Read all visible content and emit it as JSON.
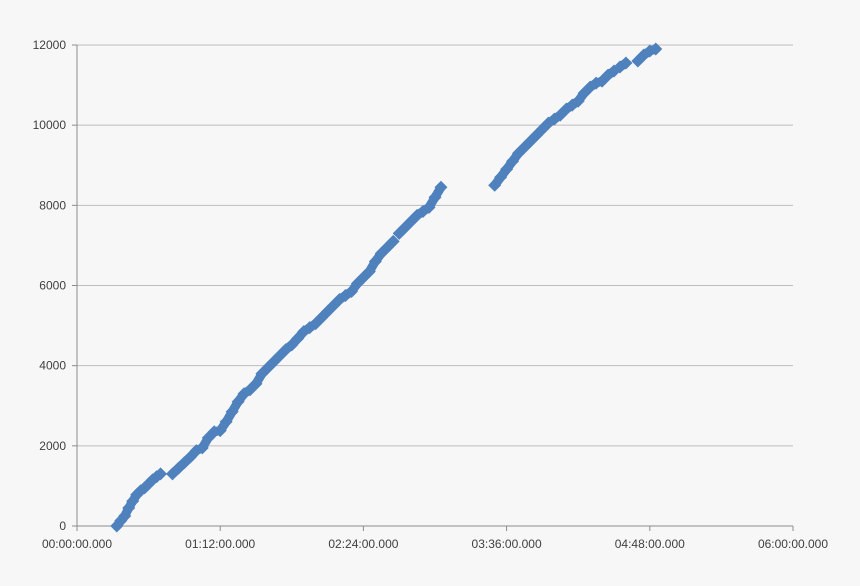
{
  "chart_data": {
    "type": "scatter",
    "title": "",
    "xlabel": "",
    "ylabel": "",
    "x_axis": {
      "unit": "elapsed time (hh:mm:ss.000)",
      "range_minutes": [
        0,
        360
      ],
      "tick_minutes": [
        0,
        72,
        144,
        216,
        288,
        360
      ],
      "tick_labels": [
        "00:00:00.000",
        "01:12:00.000",
        "02:24:00.000",
        "03:36:00.000",
        "04:48:00.000",
        "06:00:00.000"
      ]
    },
    "y_axis": {
      "range": [
        0,
        12000
      ],
      "ticks": [
        0,
        2000,
        4000,
        6000,
        8000,
        10000,
        12000
      ],
      "tick_labels": [
        "0",
        "2000",
        "4000",
        "6000",
        "8000",
        "10000",
        "12000"
      ]
    },
    "grid": true,
    "legend": "none",
    "series": [
      {
        "color": "#4f81bd",
        "marker": "diamond",
        "segments": [
          {
            "x": [
              20,
              22,
              24,
              26,
              28,
              30,
              32,
              34,
              36,
              38,
              40,
              42
            ],
            "y": [
              0,
              130,
              250,
              450,
              620,
              780,
              880,
              950,
              1050,
              1150,
              1230,
              1300
            ]
          },
          {
            "x": [
              48,
              51,
              54,
              57,
              60,
              63,
              66,
              69,
              72,
              75,
              78,
              81,
              84,
              87,
              90,
              93,
              96,
              99,
              102,
              105,
              108,
              111,
              114,
              117,
              120,
              123,
              126,
              129,
              132,
              135,
              138,
              141,
              144,
              147,
              150,
              153,
              156,
              159
            ],
            "y": [
              1300,
              1440,
              1580,
              1720,
              1880,
              1950,
              2200,
              2350,
              2380,
              2600,
              2850,
              3100,
              3300,
              3400,
              3550,
              3800,
              3950,
              4100,
              4250,
              4400,
              4520,
              4680,
              4850,
              4950,
              5050,
              5200,
              5350,
              5500,
              5650,
              5750,
              5850,
              6050,
              6200,
              6350,
              6600,
              6800,
              6950,
              7100
            ]
          },
          {
            "x": [
              162,
              165,
              168,
              171,
              174,
              177,
              180,
              183
            ],
            "y": [
              7300,
              7450,
              7600,
              7750,
              7850,
              7950,
              8200,
              8450
            ]
          },
          {
            "x": [
              210,
              213,
              216,
              219,
              222,
              225,
              228,
              231,
              234,
              237,
              240,
              243,
              246,
              249,
              252,
              255,
              258,
              261,
              264,
              267,
              270
            ],
            "y": [
              8500,
              8700,
              8900,
              9100,
              9300,
              9450,
              9600,
              9750,
              9900,
              10050,
              10150,
              10250,
              10400,
              10500,
              10600,
              10800,
              10950,
              11050,
              11100,
              11250,
              11350
            ]
          },
          {
            "x": [
              273,
              276
            ],
            "y": [
              11450,
              11550
            ]
          },
          {
            "x": [
              282,
              285,
              288,
              291
            ],
            "y": [
              11600,
              11750,
              11850,
              11900
            ]
          }
        ]
      }
    ]
  }
}
